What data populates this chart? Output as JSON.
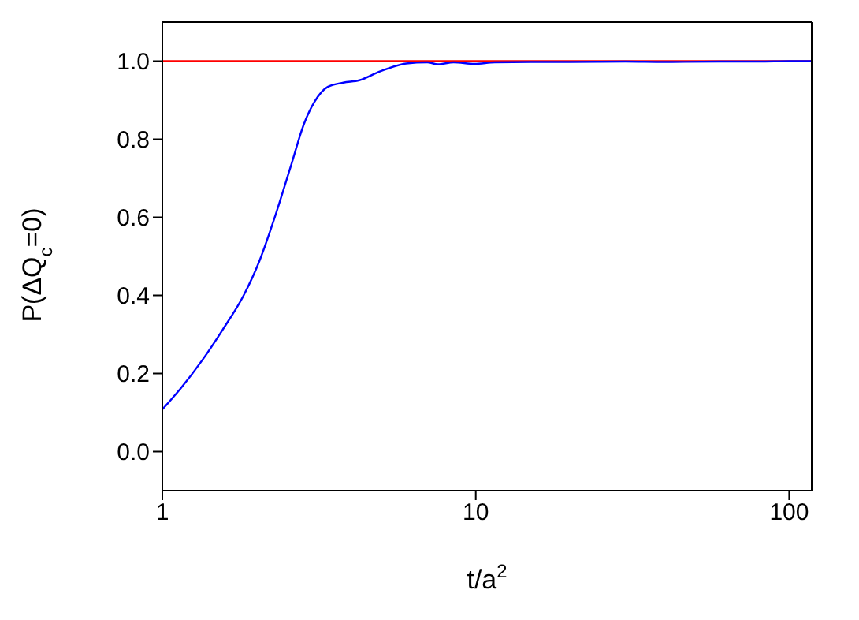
{
  "chart_data": {
    "type": "line",
    "xlabel": "t/a$^{2}$",
    "ylabel": "P(ΔQ$_{c}$=0)",
    "log": "x",
    "xlim": [
      1,
      118
    ],
    "xticks": [
      1,
      10,
      100
    ],
    "ylim": [
      -0.1,
      1.1
    ],
    "yticks": [
      {
        "value": 0,
        "label": "0.0"
      },
      0.2,
      0.4,
      0.6,
      0.8,
      {
        "value": 1,
        "label": "1.0"
      }
    ],
    "legend": false,
    "marker": "none",
    "line_style": "solid",
    "series": [
      {
        "color": "#0000ff",
        "x": [
          1,
          1.145,
          1.335,
          1.56,
          1.82,
          2.04,
          2.29,
          2.57,
          2.83,
          3.06,
          3.37,
          3.78,
          4.25,
          4.96,
          6.0,
          7.0,
          7.57,
          8.5,
          9.9,
          11.5,
          15,
          20,
          30,
          40,
          60,
          80,
          100,
          118
        ],
        "values": [
          0.108,
          0.162,
          0.232,
          0.313,
          0.401,
          0.488,
          0.603,
          0.731,
          0.839,
          0.896,
          0.934,
          0.945,
          0.951,
          0.974,
          0.994,
          0.997,
          0.992,
          0.997,
          0.993,
          0.997,
          0.998,
          0.998,
          0.999,
          0.998,
          0.999,
          0.999,
          1.0,
          1.0
        ]
      }
    ],
    "ref_lines": [
      {
        "axis": "y",
        "value": 1.0,
        "color": "#ff0000",
        "line_style": "solid"
      }
    ]
  }
}
